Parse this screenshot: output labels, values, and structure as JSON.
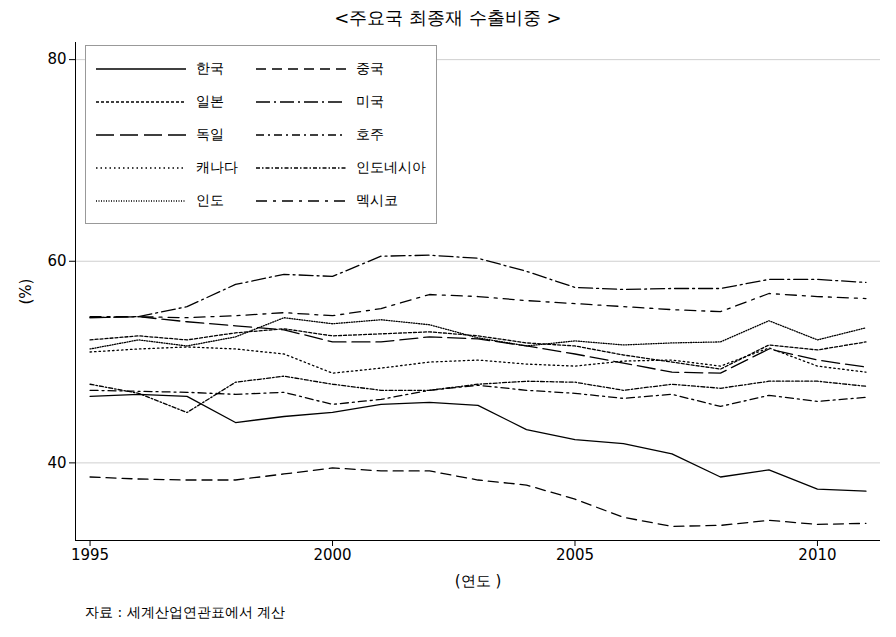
{
  "chart_data": {
    "type": "line",
    "title": "<주요국 최종재 수출비중 >",
    "x_label": "(연도 )",
    "y_label": "(%)",
    "source": "자료 : 세계산업연관표에서 계산",
    "x": [
      1995,
      1996,
      1997,
      1998,
      1999,
      2000,
      2001,
      2002,
      2003,
      2004,
      2005,
      2006,
      2007,
      2008,
      2009,
      2010,
      2011
    ],
    "xlim": [
      1994.7,
      2011.3
    ],
    "xticks": [
      1995,
      2000,
      2005,
      2010
    ],
    "ylim": [
      32.3,
      81.7
    ],
    "yticks": [
      40,
      60,
      80
    ],
    "grid": true,
    "legend": "top-left",
    "series": [
      {
        "name": "한국",
        "color": "#000000",
        "line_style": "solid",
        "values": [
          46.6,
          46.8,
          46.6,
          44.0,
          44.6,
          45.0,
          45.8,
          46.0,
          45.7,
          43.3,
          42.3,
          41.9,
          40.9,
          38.6,
          39.3,
          37.4,
          37.2
        ]
      },
      {
        "name": "중국",
        "color": "#000000",
        "line_style": "dashed",
        "values": [
          38.6,
          38.4,
          38.3,
          38.3,
          38.9,
          39.5,
          39.2,
          39.2,
          38.3,
          37.8,
          36.4,
          34.6,
          33.7,
          33.8,
          34.3,
          33.9,
          34.0
        ]
      },
      {
        "name": "일본",
        "color": "#000000",
        "line_style": "shortdash",
        "values": [
          52.2,
          52.6,
          52.2,
          52.9,
          53.3,
          52.6,
          52.8,
          53.0,
          52.6,
          51.9,
          51.6,
          50.7,
          50.0,
          49.3,
          51.7,
          51.2,
          52.0
        ]
      },
      {
        "name": "미국",
        "color": "#000000",
        "line_style": "longdashdot",
        "values": [
          54.4,
          54.5,
          55.5,
          57.7,
          58.7,
          58.5,
          60.5,
          60.6,
          60.3,
          59.0,
          57.4,
          57.2,
          57.3,
          57.3,
          58.2,
          58.2,
          57.9
        ]
      },
      {
        "name": "독일",
        "color": "#000000",
        "line_style": "longdash",
        "values": [
          54.4,
          54.5,
          54.0,
          53.6,
          53.2,
          52.0,
          52.0,
          52.5,
          52.3,
          51.6,
          50.8,
          49.9,
          49.0,
          48.9,
          51.3,
          50.2,
          49.5
        ]
      },
      {
        "name": "호주",
        "color": "#000000",
        "line_style": "dashdot",
        "values": [
          47.2,
          47.1,
          47.0,
          46.8,
          47.0,
          45.8,
          46.3,
          47.2,
          47.7,
          47.2,
          46.9,
          46.4,
          46.8,
          45.6,
          46.7,
          46.1,
          46.5
        ]
      },
      {
        "name": "캐나다",
        "color": "#000000",
        "line_style": "dotted",
        "values": [
          51.0,
          51.3,
          51.5,
          51.3,
          50.8,
          48.9,
          49.4,
          50.0,
          50.2,
          49.8,
          49.6,
          50.1,
          50.2,
          49.6,
          51.4,
          49.6,
          49.0
        ]
      },
      {
        "name": "인도네시아",
        "color": "#000000",
        "line_style": "shortdashdot",
        "values": [
          47.8,
          46.9,
          45.0,
          48.0,
          48.6,
          47.8,
          47.2,
          47.2,
          47.8,
          48.1,
          48.0,
          47.2,
          47.8,
          47.4,
          48.1,
          48.1,
          47.6
        ]
      },
      {
        "name": "인도",
        "color": "#000000",
        "line_style": "densedot",
        "values": [
          51.3,
          52.2,
          51.6,
          52.5,
          54.4,
          53.8,
          54.2,
          53.7,
          52.4,
          51.6,
          52.1,
          51.7,
          51.9,
          52.0,
          54.1,
          52.2,
          53.4
        ]
      },
      {
        "name": "멕시코",
        "color": "#000000",
        "line_style": "wideDashdot",
        "values": [
          54.5,
          54.5,
          54.4,
          54.6,
          54.9,
          54.6,
          55.3,
          56.7,
          56.5,
          56.1,
          55.8,
          55.5,
          55.2,
          55.0,
          56.8,
          56.5,
          56.3
        ]
      }
    ]
  }
}
